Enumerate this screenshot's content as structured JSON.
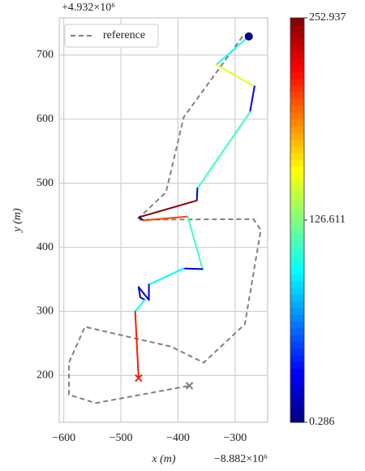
{
  "chart_data": {
    "type": "line",
    "xlabel": "x (m)",
    "ylabel": "y (m)",
    "x_offset_label": "−8.882×10⁶",
    "y_offset_label": "+4.932×10⁶",
    "xlim": [
      -608,
      -243
    ],
    "ylim": [
      127,
      758
    ],
    "xticks": [
      {
        "value": -600,
        "label": "−600"
      },
      {
        "value": -500,
        "label": "−500"
      },
      {
        "value": -400,
        "label": "−400"
      },
      {
        "value": -300,
        "label": "−300"
      }
    ],
    "yticks": [
      200,
      300,
      400,
      500,
      600,
      700
    ],
    "grid": true,
    "legend": "upper left",
    "colormap": "jet",
    "clim": [
      0.286,
      252.937
    ],
    "cticks": [
      0.286,
      126.611,
      252.937
    ],
    "series": [
      {
        "name": "reference",
        "color": "#808080",
        "dash": "dashed",
        "x": [
          -287,
          -390,
          -421,
          -472,
          -268,
          -255,
          -283,
          -355,
          -412,
          -563,
          -591,
          -591,
          -544,
          -380
        ],
        "y": [
          729,
          603,
          486,
          443,
          444,
          427,
          280,
          220,
          245,
          276,
          220,
          170,
          157,
          184
        ]
      },
      {
        "x": [
          -276,
          -333,
          -266,
          -274,
          -366,
          -367,
          -468,
          -461,
          -383,
          -357,
          -390,
          -451,
          -451,
          -469,
          -466,
          -458,
          -475,
          -469
        ],
        "y": [
          729,
          685,
          651,
          611,
          492,
          473,
          447,
          442,
          448,
          366,
          367,
          342,
          318,
          338,
          322,
          318,
          300,
          196
        ],
        "c": [
          100,
          150,
          30,
          110,
          20,
          250,
          5,
          205,
          110,
          25,
          95,
          20,
          20,
          20,
          20,
          95,
          215
        ]
      }
    ]
  }
}
